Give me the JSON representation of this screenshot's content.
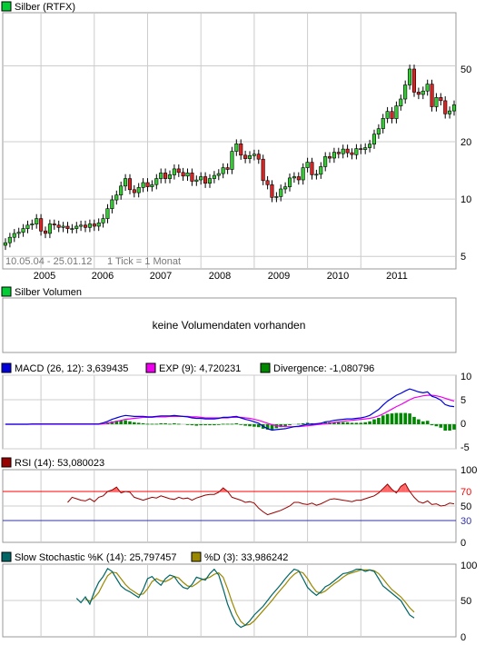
{
  "colors": {
    "price_box": "#00cc33",
    "volume_box": "#00cc33",
    "candle_up": "#33cc33",
    "candle_down": "#dd2222",
    "macd_line": "#0000dd",
    "exp_line": "#ee00ee",
    "divergence_bars": "#008800",
    "rsi_line": "#990000",
    "rsi_fill": "#ff6666",
    "rsi_70": "#ff0000",
    "rsi_30": "#3333aa",
    "stoch_k": "#006666",
    "stoch_d": "#998800",
    "grid": "#cccccc"
  },
  "price_panel": {
    "legend": "Silber (RTFX)",
    "range_text": "10.05.04 - 25.01.12",
    "tick_text": "1 Tick = 1 Monat",
    "y_labels": [
      "50",
      "20",
      "10",
      "5"
    ],
    "x_labels": [
      "2005",
      "2006",
      "2007",
      "2008",
      "2009",
      "2010",
      "2011"
    ]
  },
  "volume_panel": {
    "legend": "Silber Volumen",
    "message": "keine Volumendaten vorhanden"
  },
  "macd_panel": {
    "macd_legend": "MACD (26, 12): 3,639435",
    "exp_legend": "EXP (9): 4,720231",
    "div_legend": "Divergence: -1,080796",
    "y_labels": [
      "10",
      "5",
      "0",
      "-5"
    ]
  },
  "rsi_panel": {
    "legend": "RSI (14): 53,080023",
    "y_labels": [
      "100",
      "70",
      "50",
      "30",
      "0"
    ]
  },
  "stoch_panel": {
    "k_legend": "Slow Stochastic %K (14): 25,797457",
    "d_legend": "%D (3): 33,986242",
    "y_labels": [
      "100",
      "50",
      "0"
    ]
  },
  "chart_data": [
    {
      "type": "candlestick",
      "title": "Silber (RTFX)",
      "y_scale": "log",
      "ylim": [
        4.3,
        95
      ],
      "x_range": [
        "2004-05",
        "2012-01"
      ],
      "x_ticks": [
        "2005",
        "2006",
        "2007",
        "2008",
        "2009",
        "2010",
        "2011"
      ],
      "y_ticks": [
        5,
        10,
        20,
        50
      ],
      "grid": true,
      "series": [
        {
          "name": "Silber (RTFX)",
          "period": "monthly",
          "close": [
            5.9,
            6.3,
            6.6,
            6.7,
            7.0,
            7.3,
            7.4,
            7.9,
            6.8,
            6.6,
            7.4,
            7.3,
            7.1,
            7.2,
            7.0,
            7.0,
            7.2,
            7.3,
            7.1,
            7.4,
            7.2,
            7.5,
            7.9,
            8.9,
            9.9,
            10.5,
            11.7,
            12.8,
            11.2,
            10.8,
            11.5,
            12.2,
            11.6,
            11.9,
            12.8,
            13.7,
            12.8,
            13.4,
            14.4,
            13.8,
            13.2,
            13.7,
            12.4,
            12.6,
            13.1,
            12.1,
            12.8,
            13.3,
            13.6,
            14.6,
            14.3,
            17.8,
            19.5,
            17.0,
            16.3,
            16.9,
            17.2,
            16.2,
            12.5,
            11.9,
            10.2,
            10.3,
            11.3,
            11.6,
            12.9,
            13.1,
            12.6,
            14.6,
            15.6,
            13.4,
            13.5,
            14.8,
            16.7,
            16.4,
            17.6,
            17.3,
            18.3,
            17.5,
            17.1,
            18.4,
            18.2,
            18.6,
            19.4,
            21.9,
            23.4,
            26.5,
            28.8,
            26.4,
            30.8,
            33.5,
            39.7,
            48.1,
            36.4,
            35.4,
            36.9,
            40.1,
            30.5,
            34.1,
            32.8,
            28.0,
            29.0,
            31.2
          ]
        }
      ]
    },
    {
      "type": "line",
      "title": "MACD (26, 12)",
      "ylim": [
        -5,
        10
      ],
      "y_ticks": [
        -5,
        0,
        5,
        10
      ],
      "grid": true,
      "series": [
        {
          "name": "MACD (26, 12)",
          "values": [
            0,
            0,
            0,
            0,
            0,
            0,
            0.05,
            0.05,
            0.05,
            0.05,
            0.05,
            0.05,
            0.05,
            0.05,
            0.05,
            0.05,
            0.05,
            0.05,
            0.05,
            0.05,
            0.05,
            0.05,
            0.3,
            0.6,
            1.0,
            1.3,
            1.6,
            1.8,
            1.7,
            1.6,
            1.6,
            1.6,
            1.5,
            1.5,
            1.6,
            1.7,
            1.7,
            1.7,
            1.8,
            1.7,
            1.6,
            1.5,
            1.3,
            1.2,
            1.2,
            1.1,
            1.1,
            1.1,
            1.2,
            1.4,
            1.4,
            1.5,
            1.6,
            1.3,
            1.0,
            0.8,
            0.5,
            0.2,
            -0.4,
            -0.9,
            -1.2,
            -1.1,
            -1.0,
            -0.9,
            -0.7,
            -0.5,
            -0.4,
            -0.2,
            0.0,
            0.0,
            0.1,
            0.2,
            0.5,
            0.6,
            0.8,
            0.9,
            1.0,
            1.1,
            1.1,
            1.2,
            1.3,
            1.5,
            1.8,
            2.4,
            3.0,
            3.9,
            4.7,
            5.3,
            5.9,
            6.3,
            6.8,
            7.2,
            6.9,
            6.6,
            6.4,
            6.6,
            5.7,
            5.4,
            4.9,
            4.0,
            3.7,
            3.6
          ]
        },
        {
          "name": "EXP (9)",
          "values": [
            0,
            0,
            0,
            0,
            0,
            0,
            0,
            0,
            0,
            0,
            0,
            0,
            0,
            0,
            0,
            0,
            0,
            0,
            0,
            0,
            0,
            0,
            0.1,
            0.2,
            0.4,
            0.6,
            0.8,
            1.0,
            1.1,
            1.2,
            1.3,
            1.4,
            1.4,
            1.4,
            1.5,
            1.5,
            1.5,
            1.6,
            1.6,
            1.6,
            1.6,
            1.6,
            1.5,
            1.5,
            1.4,
            1.3,
            1.3,
            1.3,
            1.3,
            1.3,
            1.3,
            1.4,
            1.4,
            1.4,
            1.3,
            1.2,
            1.0,
            0.8,
            0.5,
            0.2,
            -0.1,
            -0.3,
            -0.4,
            -0.5,
            -0.5,
            -0.5,
            -0.5,
            -0.4,
            -0.3,
            -0.2,
            -0.1,
            0.0,
            0.1,
            0.2,
            0.4,
            0.5,
            0.6,
            0.7,
            0.8,
            0.9,
            1.0,
            1.1,
            1.2,
            1.4,
            1.7,
            2.1,
            2.6,
            3.1,
            3.6,
            4.0,
            4.5,
            5.0,
            5.4,
            5.6,
            5.8,
            5.9,
            5.9,
            5.8,
            5.6,
            5.3,
            5.0,
            4.7
          ]
        },
        {
          "name": "Divergence",
          "values": [
            0,
            0,
            0,
            0,
            0,
            0,
            0,
            0,
            0,
            0,
            0,
            0,
            0,
            0,
            0,
            0,
            0,
            0,
            0,
            0,
            0,
            0,
            0.2,
            0.4,
            0.6,
            0.7,
            0.8,
            0.8,
            0.6,
            0.4,
            0.3,
            0.2,
            0.1,
            0.1,
            0.1,
            0.2,
            0.2,
            0.1,
            0.2,
            0.1,
            0,
            -0.1,
            -0.2,
            -0.3,
            -0.2,
            -0.2,
            -0.2,
            -0.2,
            -0.1,
            0.1,
            0.1,
            0.1,
            0.2,
            -0.1,
            -0.3,
            -0.4,
            -0.5,
            -0.6,
            -0.9,
            -1.1,
            -1.1,
            -0.8,
            -0.6,
            -0.4,
            -0.2,
            0,
            0.1,
            0.2,
            0.3,
            0.2,
            0.2,
            0.2,
            0.4,
            0.4,
            0.4,
            0.4,
            0.4,
            0.4,
            0.3,
            0.3,
            0.3,
            0.4,
            0.6,
            1.0,
            1.3,
            1.8,
            2.1,
            2.2,
            2.3,
            2.3,
            2.3,
            2.2,
            1.5,
            1.0,
            0.6,
            0.7,
            -0.2,
            -0.4,
            -0.7,
            -1.3,
            -1.3,
            -1.1
          ]
        }
      ]
    },
    {
      "type": "line",
      "title": "RSI (14)",
      "ylim": [
        0,
        100
      ],
      "y_ticks": [
        0,
        30,
        50,
        70,
        100
      ],
      "reference_lines": [
        70,
        30
      ],
      "series": [
        {
          "name": "RSI (14)",
          "values": [
            null,
            null,
            null,
            null,
            null,
            null,
            null,
            null,
            null,
            null,
            null,
            null,
            null,
            null,
            55,
            62,
            60,
            58,
            57,
            60,
            56,
            62,
            64,
            70,
            72,
            76,
            68,
            70,
            69,
            62,
            60,
            58,
            60,
            62,
            61,
            64,
            62,
            60,
            59,
            62,
            60,
            61,
            58,
            61,
            63,
            65,
            66,
            66,
            69,
            75,
            70,
            62,
            60,
            58,
            55,
            56,
            54,
            47,
            42,
            38,
            40,
            42,
            44,
            47,
            50,
            55,
            55,
            53,
            52,
            54,
            51,
            53,
            56,
            59,
            60,
            59,
            58,
            57,
            56,
            58,
            58,
            60,
            62,
            64,
            68,
            74,
            80,
            73,
            68,
            77,
            81,
            70,
            62,
            56,
            54,
            57,
            52,
            53,
            50,
            51,
            54,
            53
          ]
        }
      ]
    },
    {
      "type": "line",
      "title": "Slow Stochastic %K (14)",
      "ylim": [
        0,
        100
      ],
      "y_ticks": [
        0,
        50,
        100
      ],
      "series": [
        {
          "name": "Slow Stochastic %K (14)",
          "values": [
            null,
            null,
            null,
            null,
            null,
            null,
            null,
            null,
            null,
            null,
            null,
            null,
            null,
            null,
            null,
            null,
            53,
            47,
            55,
            45,
            62,
            75,
            83,
            94,
            90,
            80,
            70,
            65,
            62,
            58,
            54,
            65,
            80,
            83,
            76,
            71,
            80,
            85,
            83,
            74,
            68,
            66,
            72,
            82,
            80,
            78,
            87,
            93,
            85,
            66,
            45,
            30,
            18,
            13,
            16,
            22,
            30,
            36,
            42,
            50,
            58,
            65,
            72,
            80,
            87,
            93,
            91,
            80,
            68,
            62,
            57,
            62,
            69,
            72,
            77,
            82,
            87,
            88,
            90,
            93,
            93,
            90,
            92,
            90,
            80,
            70,
            65,
            60,
            55,
            50,
            40,
            30,
            26
          ]
        },
        {
          "name": "%D (3)",
          "values": [
            null,
            null,
            null,
            null,
            null,
            null,
            null,
            null,
            null,
            null,
            null,
            null,
            null,
            null,
            null,
            null,
            null,
            null,
            52,
            49,
            54,
            61,
            73,
            84,
            89,
            88,
            80,
            72,
            66,
            62,
            58,
            59,
            66,
            76,
            80,
            77,
            76,
            79,
            83,
            81,
            75,
            70,
            69,
            73,
            78,
            80,
            82,
            86,
            88,
            82,
            66,
            48,
            32,
            21,
            16,
            17,
            22,
            29,
            36,
            43,
            50,
            58,
            65,
            72,
            80,
            86,
            90,
            88,
            80,
            70,
            62,
            60,
            63,
            68,
            73,
            77,
            82,
            86,
            88,
            90,
            92,
            92,
            92,
            91,
            87,
            80,
            72,
            65,
            60,
            55,
            48,
            40,
            34
          ]
        }
      ]
    }
  ]
}
